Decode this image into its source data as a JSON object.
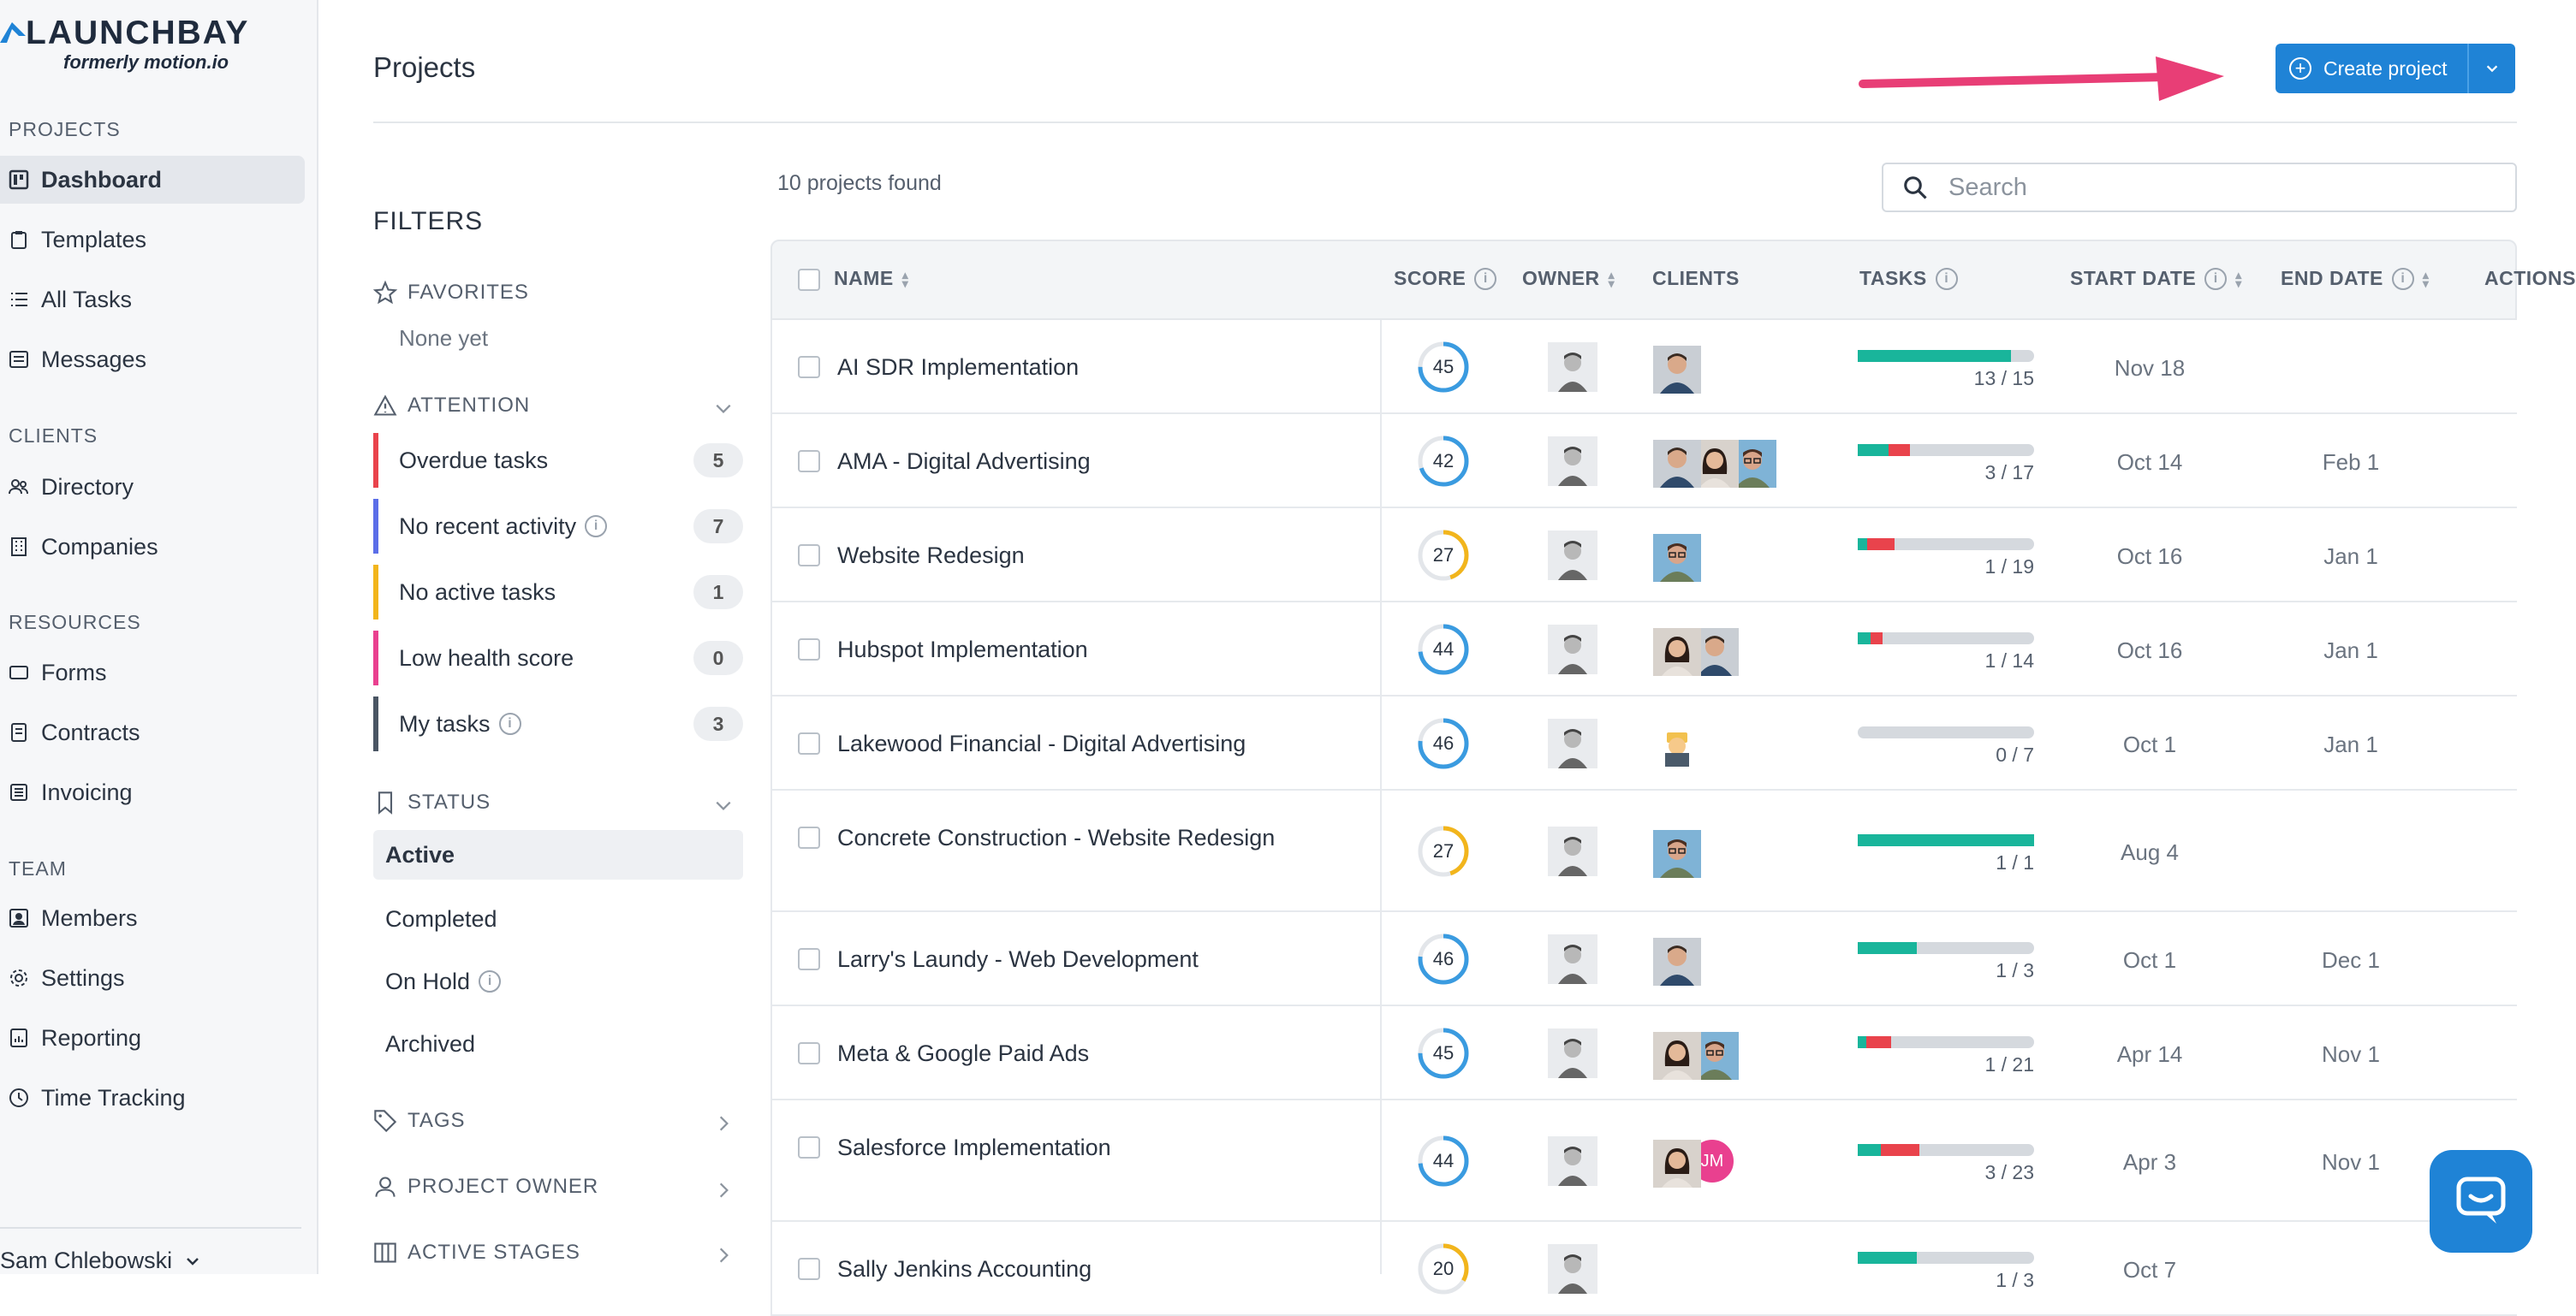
{
  "brand": {
    "name": "LAUNCHBAY",
    "subtitle": "formerly motion.io"
  },
  "sidebar": {
    "sections": [
      {
        "title": "PROJECTS",
        "items": [
          {
            "label": "Dashboard",
            "icon": "dashboard-icon",
            "selected": true
          },
          {
            "label": "Templates",
            "icon": "clipboard-icon"
          },
          {
            "label": "All Tasks",
            "icon": "list-icon"
          },
          {
            "label": "Messages",
            "icon": "message-icon"
          }
        ]
      },
      {
        "title": "CLIENTS",
        "items": [
          {
            "label": "Directory",
            "icon": "users-icon"
          },
          {
            "label": "Companies",
            "icon": "building-icon"
          }
        ]
      },
      {
        "title": "RESOURCES",
        "items": [
          {
            "label": "Forms",
            "icon": "form-icon"
          },
          {
            "label": "Contracts",
            "icon": "contract-icon"
          },
          {
            "label": "Invoicing",
            "icon": "invoice-icon"
          }
        ]
      },
      {
        "title": "TEAM",
        "items": [
          {
            "label": "Members",
            "icon": "member-icon"
          },
          {
            "label": "Settings",
            "icon": "gear-icon"
          },
          {
            "label": "Reporting",
            "icon": "report-icon"
          },
          {
            "label": "Time Tracking",
            "icon": "clock-icon"
          }
        ]
      }
    ],
    "user": "Sam Chlebowski"
  },
  "header": {
    "title": "Projects",
    "create_label": "Create project"
  },
  "filters": {
    "title": "FILTERS",
    "favorites": {
      "title": "FAVORITES",
      "empty": "None yet"
    },
    "attention": {
      "title": "ATTENTION",
      "items": [
        {
          "label": "Overdue tasks",
          "count": "5",
          "color": "#e9434c",
          "info": false
        },
        {
          "label": "No recent activity",
          "count": "7",
          "color": "#5b6ee8",
          "info": true
        },
        {
          "label": "No active tasks",
          "count": "1",
          "color": "#f2b51c",
          "info": false
        },
        {
          "label": "Low health score",
          "count": "0",
          "color": "#e9408f",
          "info": false
        },
        {
          "label": "My tasks",
          "count": "3",
          "color": "#4a5563",
          "info": true
        }
      ]
    },
    "status": {
      "title": "STATUS",
      "items": [
        {
          "label": "Active",
          "selected": true
        },
        {
          "label": "Completed"
        },
        {
          "label": "On Hold",
          "info": true
        },
        {
          "label": "Archived"
        }
      ]
    },
    "tags_title": "TAGS",
    "owner_title": "PROJECT OWNER",
    "stages_title": "ACTIVE STAGES"
  },
  "table": {
    "found": "10 projects found",
    "search_placeholder": "Search",
    "columns": {
      "name": "NAME",
      "score": "SCORE",
      "owner": "OWNER",
      "clients": "CLIENTS",
      "tasks": "TASKS",
      "start": "START DATE",
      "end": "END DATE",
      "actions": "ACTIONS"
    },
    "rows": [
      {
        "name": "AI SDR Implementation",
        "score": 45,
        "tasks_done": 13,
        "tasks_total": 15,
        "tasks_text": "13 / 15",
        "overdue": 0,
        "start": "Nov 18",
        "end": "",
        "clients": [
          "man-photo"
        ]
      },
      {
        "name": "AMA - Digital Advertising",
        "score": 42,
        "tasks_done": 3,
        "tasks_total": 17,
        "tasks_text": "3 / 17",
        "overdue": 2,
        "start": "Oct 14",
        "end": "Feb 1",
        "clients": [
          "man-photo",
          "woman-photo",
          "man-glasses-photo"
        ]
      },
      {
        "name": "Website Redesign",
        "score": 27,
        "tasks_done": 1,
        "tasks_total": 19,
        "tasks_text": "1 / 19",
        "overdue": 3,
        "start": "Oct 16",
        "end": "Jan 1",
        "clients": [
          "man-glasses-photo"
        ]
      },
      {
        "name": "Hubspot Implementation",
        "score": 44,
        "tasks_done": 1,
        "tasks_total": 14,
        "tasks_text": "1 / 14",
        "overdue": 1,
        "start": "Oct 16",
        "end": "Jan 1",
        "clients": [
          "woman-photo",
          "man-photo"
        ]
      },
      {
        "name": "Lakewood Financial - Digital Advertising",
        "score": 46,
        "tasks_done": 0,
        "tasks_total": 7,
        "tasks_text": "0 / 7",
        "overdue": 0,
        "start": "Oct 1",
        "end": "Jan 1",
        "clients": [
          "emoji-avatar"
        ]
      },
      {
        "name": "Concrete Construction - Website Redesign",
        "score": 27,
        "tasks_done": 1,
        "tasks_total": 1,
        "tasks_text": "1 / 1",
        "overdue": 0,
        "start": "Aug 4",
        "end": "",
        "clients": [
          "man-glasses-photo"
        ]
      },
      {
        "name": "Larry's Laundy - Web Development",
        "score": 46,
        "tasks_done": 1,
        "tasks_total": 3,
        "tasks_text": "1 / 3",
        "overdue": 0,
        "start": "Oct 1",
        "end": "Dec 1",
        "clients": [
          "man-photo"
        ]
      },
      {
        "name": "Meta & Google Paid Ads",
        "score": 45,
        "tasks_done": 1,
        "tasks_total": 21,
        "tasks_text": "1 / 21",
        "overdue": 3,
        "start": "Apr 14",
        "end": "Nov 1",
        "clients": [
          "woman-photo",
          "man-glasses-photo"
        ]
      },
      {
        "name": "Salesforce Implementation",
        "score": 44,
        "tasks_done": 3,
        "tasks_total": 23,
        "tasks_text": "3 / 23",
        "overdue": 5,
        "start": "Apr 3",
        "end": "Nov 1",
        "clients": [
          "woman-photo",
          "JM"
        ]
      },
      {
        "name": "Sally Jenkins Accounting",
        "score": 20,
        "tasks_done": 1,
        "tasks_total": 3,
        "tasks_text": "1 / 3",
        "overdue": 0,
        "start": "Oct 7",
        "end": "",
        "clients": []
      }
    ]
  },
  "colors": {
    "accent": "#1f83d6",
    "good": "#19b59b",
    "bad": "#e9434c",
    "score_low": "#f2b51c",
    "score_mid": "#3a9be0",
    "arrow": "#e83e76"
  }
}
